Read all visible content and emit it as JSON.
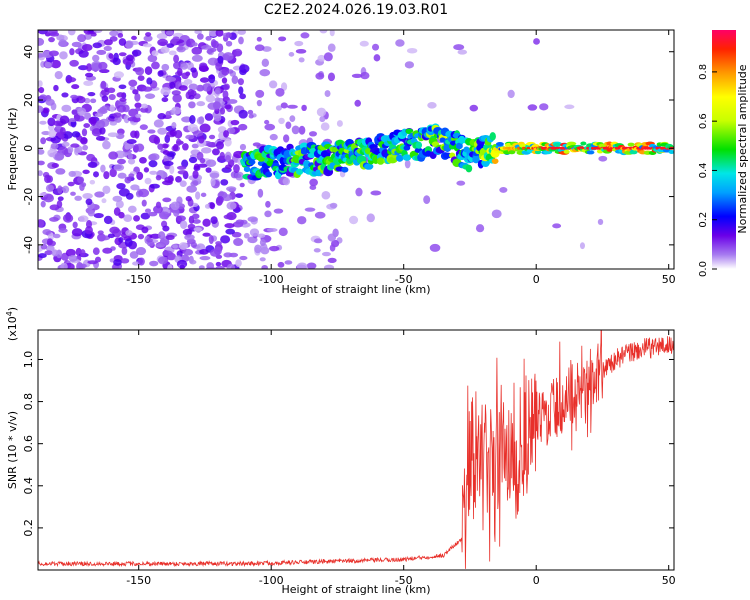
{
  "title": "C2E2.2024.026.19.03.R01",
  "colors": {
    "snr_line": "#e8302a",
    "spectrum_low": "#7a00e6",
    "frame": "#000000"
  },
  "chart_data": [
    {
      "type": "heatmap",
      "xlabel": "Height of straight line (km)",
      "ylabel": "Frequency (Hz)",
      "xlim": [
        -188,
        52
      ],
      "ylim": [
        -50,
        49
      ],
      "xticks": [
        -150,
        -100,
        -50,
        0,
        50
      ],
      "yticks": [
        -40,
        -20,
        0,
        20,
        40
      ],
      "colorbar": {
        "label": "Normalized spectral amplitude",
        "range": [
          0,
          0.97
        ],
        "ticks": [
          "0.0",
          "0.2",
          "0.4",
          "0.6",
          "0.8"
        ],
        "tick_values": [
          0.0,
          0.2,
          0.4,
          0.6,
          0.8
        ]
      },
      "ridge": [
        {
          "x": -110,
          "f": -7,
          "amp": 0.45
        },
        {
          "x": -90,
          "f": -5,
          "amp": 0.5
        },
        {
          "x": -70,
          "f": -3,
          "amp": 0.5
        },
        {
          "x": -50,
          "f": 1,
          "amp": 0.5
        },
        {
          "x": -35,
          "f": 3,
          "amp": 0.55
        },
        {
          "x": -25,
          "f": -3,
          "amp": 0.45
        },
        {
          "x": -15,
          "f": 0,
          "amp": 0.75
        },
        {
          "x": 0,
          "f": 0,
          "amp": 0.95
        },
        {
          "x": 20,
          "f": 0,
          "amp": 0.95
        },
        {
          "x": 52,
          "f": 0,
          "amp": 0.95
        }
      ]
    },
    {
      "type": "line",
      "xlabel": "Height of straight line (km)",
      "ylabel": "SNR (10 * v/v)",
      "scale_label": "(x10",
      "scale_exp": "4",
      "scale_close": ")",
      "xlim": [
        -188,
        52
      ],
      "ylim": [
        0,
        1.14
      ],
      "xticks": [
        -150,
        -100,
        -50,
        0,
        50
      ],
      "yticks": [
        0.2,
        0.4,
        0.6,
        0.8,
        1.0
      ],
      "series": [
        {
          "x": [
            -188,
            -150,
            -110,
            -80,
            -50,
            -35,
            -28,
            -25,
            -22,
            -18,
            -14,
            -10,
            -5,
            0,
            5,
            10,
            15,
            20,
            25,
            30,
            35,
            40,
            45,
            52
          ],
          "y": [
            0.03,
            0.03,
            0.03,
            0.04,
            0.05,
            0.07,
            0.15,
            0.55,
            0.55,
            0.5,
            0.55,
            0.55,
            0.6,
            0.7,
            0.75,
            0.8,
            0.85,
            0.9,
            0.95,
            1.0,
            1.03,
            1.05,
            1.06,
            1.07
          ]
        }
      ]
    }
  ]
}
